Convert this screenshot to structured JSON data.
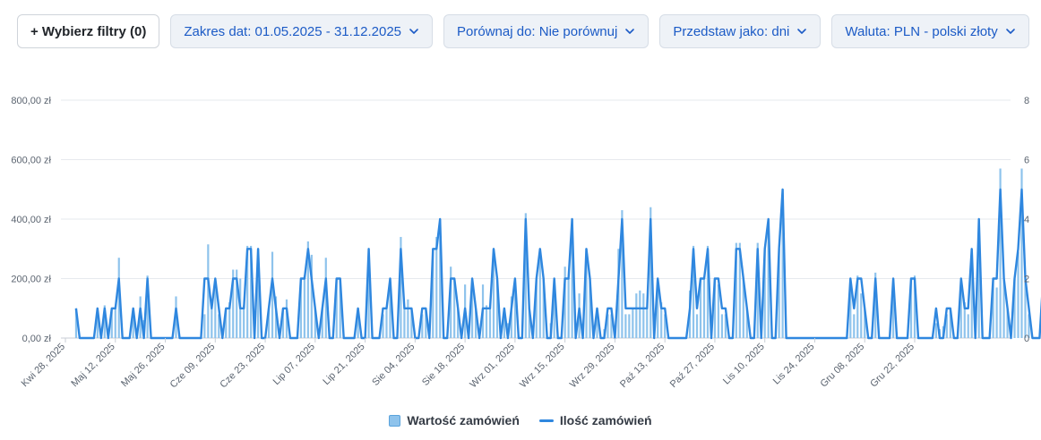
{
  "toolbar": {
    "filters_label": "+ Wybierz filtry (0)",
    "date_range_label": "Zakres dat: 01.05.2025 - 31.12.2025",
    "compare_label": "Porównaj do: Nie porównuj",
    "present_as_label": "Przedstaw jako: dni",
    "currency_label": "Waluta: PLN - polski złoty"
  },
  "colors": {
    "bar": "#8ec3ec",
    "line": "#2f87df",
    "accent": "#1c5bc6"
  },
  "chart_data": {
    "type": "bar",
    "x_start": "2025-05-01",
    "x_end": "2025-12-31",
    "y_left": {
      "min": 0,
      "max": 800,
      "ticks": [
        "0,00 zł",
        "200,00 zł",
        "400,00 zł",
        "600,00 zł",
        "800,00 zł"
      ]
    },
    "y_right": {
      "min": 0,
      "max": 8,
      "ticks": [
        "0",
        "2",
        "4",
        "6",
        "8"
      ]
    },
    "x_ticks": [
      {
        "date": "2025-04-28",
        "label": "Kwi 28, 2025"
      },
      {
        "date": "2025-05-12",
        "label": "Maj 12, 2025"
      },
      {
        "date": "2025-05-26",
        "label": "Maj 26, 2025"
      },
      {
        "date": "2025-06-09",
        "label": "Cze 09, 2025"
      },
      {
        "date": "2025-06-23",
        "label": "Cze 23, 2025"
      },
      {
        "date": "2025-07-07",
        "label": "Lip 07, 2025"
      },
      {
        "date": "2025-07-21",
        "label": "Lip 21, 2025"
      },
      {
        "date": "2025-08-04",
        "label": "Sie 04, 2025"
      },
      {
        "date": "2025-08-18",
        "label": "Sie 18, 2025"
      },
      {
        "date": "2025-09-01",
        "label": "Wrz 01, 2025"
      },
      {
        "date": "2025-09-15",
        "label": "Wrz 15, 2025"
      },
      {
        "date": "2025-09-29",
        "label": "Wrz 29, 2025"
      },
      {
        "date": "2025-10-13",
        "label": "Paź 13, 2025"
      },
      {
        "date": "2025-10-27",
        "label": "Paź 27, 2025"
      },
      {
        "date": "2025-11-10",
        "label": "Lis 10, 2025"
      },
      {
        "date": "2025-11-24",
        "label": "Lis 24, 2025"
      },
      {
        "date": "2025-12-08",
        "label": "Gru 08, 2025"
      },
      {
        "date": "2025-12-22",
        "label": "Gru 22, 2025"
      }
    ],
    "series": [
      {
        "name": "Wartość zamówień",
        "type": "bar",
        "unit": "zł",
        "values": [
          100,
          0,
          0,
          0,
          0,
          0,
          100,
          0,
          110,
          0,
          100,
          100,
          270,
          0,
          0,
          0,
          100,
          0,
          140,
          60,
          210,
          0,
          0,
          0,
          0,
          0,
          0,
          0,
          140,
          0,
          0,
          0,
          0,
          0,
          0,
          0,
          80,
          315,
          110,
          200,
          80,
          0,
          100,
          120,
          230,
          230,
          200,
          110,
          310,
          310,
          0,
          300,
          0,
          0,
          100,
          290,
          140,
          0,
          100,
          130,
          0,
          0,
          0,
          200,
          210,
          325,
          280,
          100,
          0,
          100,
          270,
          0,
          0,
          200,
          200,
          0,
          0,
          0,
          0,
          100,
          0,
          0,
          300,
          0,
          0,
          0,
          80,
          100,
          200,
          0,
          0,
          340,
          100,
          130,
          100,
          0,
          0,
          80,
          100,
          0,
          300,
          340,
          400,
          0,
          0,
          240,
          200,
          100,
          0,
          180,
          0,
          200,
          100,
          0,
          180,
          110,
          100,
          300,
          200,
          0,
          100,
          50,
          140,
          200,
          10,
          0,
          420,
          100,
          0,
          200,
          280,
          200,
          0,
          50,
          200,
          0,
          0,
          240,
          200,
          400,
          0,
          150,
          0,
          300,
          200,
          0,
          100,
          0,
          30,
          80,
          80,
          0,
          300,
          430,
          80,
          80,
          100,
          150,
          160,
          150,
          100,
          440,
          0,
          200,
          120,
          80,
          0,
          0,
          0,
          0,
          0,
          0,
          160,
          310,
          80,
          200,
          200,
          310,
          0,
          200,
          180,
          80,
          80,
          0,
          0,
          320,
          320,
          200,
          100,
          0,
          0,
          320,
          0,
          300,
          400,
          0,
          0,
          300,
          500,
          0,
          0,
          0,
          0,
          0,
          0,
          0,
          0,
          0,
          0,
          0,
          0,
          0,
          0,
          0,
          0,
          0,
          0,
          200,
          80,
          210,
          150,
          100,
          0,
          0,
          220,
          0,
          0,
          0,
          0,
          200,
          0,
          0,
          0,
          0,
          200,
          210,
          0,
          0,
          0,
          0,
          0,
          50,
          30,
          40,
          80,
          100,
          0,
          0,
          200,
          120,
          80,
          280,
          0,
          400,
          0,
          0,
          0,
          200,
          170,
          570,
          200,
          100,
          0,
          200,
          290,
          570,
          200,
          80,
          0,
          0,
          0,
          200,
          0,
          0,
          80,
          300,
          100,
          680,
          100,
          200,
          300,
          500,
          100,
          0,
          0,
          0,
          200,
          40,
          60,
          100,
          80,
          0,
          100,
          0,
          200,
          200,
          0,
          0,
          0,
          100,
          80,
          60,
          300,
          0,
          200,
          20,
          350,
          400,
          200,
          100,
          60,
          0,
          0,
          0,
          0,
          0,
          220
        ],
        "note": "values read approximately from the chart"
      },
      {
        "name": "Ilość zamówień",
        "type": "line",
        "unit": "szt.",
        "values": [
          1,
          0,
          0,
          0,
          0,
          0,
          1,
          0,
          1,
          0,
          1,
          1,
          2,
          0,
          0,
          0,
          1,
          0,
          1,
          0,
          2,
          0,
          0,
          0,
          0,
          0,
          0,
          0,
          1,
          0,
          0,
          0,
          0,
          0,
          0,
          0,
          2,
          2,
          1,
          2,
          1,
          0,
          1,
          1,
          2,
          2,
          1,
          1,
          3,
          3,
          0,
          3,
          0,
          0,
          1,
          2,
          1,
          0,
          1,
          1,
          0,
          0,
          0,
          2,
          2,
          3,
          2,
          1,
          0,
          1,
          2,
          0,
          0,
          2,
          2,
          0,
          0,
          0,
          0,
          1,
          0,
          0,
          3,
          0,
          0,
          0,
          1,
          1,
          2,
          0,
          0,
          3,
          1,
          1,
          1,
          0,
          0,
          1,
          1,
          0,
          3,
          3,
          4,
          0,
          0,
          2,
          2,
          1,
          0,
          1,
          0,
          2,
          1,
          0,
          1,
          1,
          1,
          3,
          2,
          0,
          1,
          0,
          1,
          2,
          0,
          0,
          4,
          1,
          0,
          2,
          3,
          2,
          0,
          0,
          2,
          0,
          0,
          2,
          2,
          4,
          0,
          1,
          0,
          3,
          2,
          0,
          1,
          0,
          0,
          1,
          1,
          0,
          2,
          4,
          1,
          1,
          1,
          1,
          1,
          1,
          1,
          4,
          0,
          2,
          1,
          1,
          0,
          0,
          0,
          0,
          0,
          0,
          1,
          3,
          1,
          2,
          2,
          3,
          0,
          2,
          2,
          1,
          1,
          0,
          0,
          3,
          3,
          2,
          1,
          0,
          0,
          3,
          0,
          3,
          4,
          0,
          0,
          3,
          5,
          0,
          0,
          0,
          0,
          0,
          0,
          0,
          0,
          0,
          0,
          0,
          0,
          0,
          0,
          0,
          0,
          0,
          0,
          2,
          1,
          2,
          2,
          1,
          0,
          0,
          2,
          0,
          0,
          0,
          0,
          2,
          0,
          0,
          0,
          0,
          2,
          2,
          0,
          0,
          0,
          0,
          0,
          1,
          0,
          0,
          1,
          1,
          0,
          0,
          2,
          1,
          1,
          3,
          0,
          4,
          0,
          0,
          0,
          2,
          2,
          5,
          2,
          1,
          0,
          2,
          3,
          5,
          2,
          1,
          0,
          0,
          0,
          2,
          0,
          0,
          1,
          3,
          1,
          4,
          1,
          2,
          3,
          4,
          1,
          0,
          0,
          0,
          2,
          0,
          1,
          1,
          1,
          0,
          1,
          0,
          2,
          2,
          0,
          0,
          0,
          1,
          1,
          1,
          3,
          0,
          2,
          0,
          3,
          4,
          2,
          1,
          1,
          0,
          0,
          0,
          0,
          0,
          2
        ]
      }
    ],
    "legend": [
      "Wartość zamówień",
      "Ilość zamówień"
    ],
    "legend_placement": "bottom-center",
    "grid": true
  }
}
